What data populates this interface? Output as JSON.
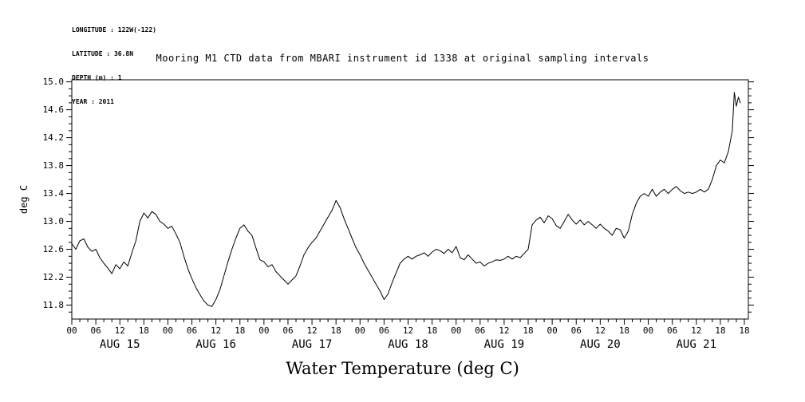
{
  "metadata": {
    "longitude": "LONGITUDE : 122W(-122)",
    "latitude": "LATITUDE : 36.8N",
    "depth": "DEPTH (m) : 1",
    "year": "YEAR : 2011"
  },
  "chart_data": {
    "type": "line",
    "title": "Mooring M1 CTD data from MBARI instrument id 1338 at original sampling intervals",
    "caption": "Water Temperature (deg C)",
    "ylabel": "deg C",
    "ylim": [
      11.6,
      15.03
    ],
    "y_tick_values": [
      11.8,
      12.2,
      12.6,
      13.0,
      13.4,
      13.8,
      14.2,
      14.6,
      15.0
    ],
    "y_minor_step": 0.1,
    "xlim_hours": [
      0,
      169
    ],
    "x_major_step_hours": 6,
    "x_minor_step_hours": 2,
    "hour_tick_labels": [
      "00",
      "06",
      "12",
      "18"
    ],
    "extra_end_hour_label": "18",
    "day_labels": [
      "AUG 15",
      "AUG 16",
      "AUG 17",
      "AUG 18",
      "AUG 19",
      "AUG 20",
      "AUG 21"
    ],
    "grid": false,
    "line_color": "#000000",
    "background": "#ffffff",
    "series": [
      {
        "name": "Water Temperature (deg C)",
        "x_unit": "hours since AUG 15 00:00 (2011)",
        "points": [
          [
            0,
            12.68
          ],
          [
            1,
            12.6
          ],
          [
            2,
            12.72
          ],
          [
            3,
            12.75
          ],
          [
            4,
            12.63
          ],
          [
            5,
            12.57
          ],
          [
            6,
            12.6
          ],
          [
            7,
            12.48
          ],
          [
            8,
            12.4
          ],
          [
            9,
            12.33
          ],
          [
            10,
            12.25
          ],
          [
            11,
            12.38
          ],
          [
            12,
            12.32
          ],
          [
            13,
            12.42
          ],
          [
            14,
            12.36
          ],
          [
            15,
            12.55
          ],
          [
            16,
            12.72
          ],
          [
            17,
            13.0
          ],
          [
            18,
            13.12
          ],
          [
            19,
            13.05
          ],
          [
            20,
            13.14
          ],
          [
            21,
            13.1
          ],
          [
            22,
            13.0
          ],
          [
            23,
            12.96
          ],
          [
            24,
            12.9
          ],
          [
            25,
            12.93
          ],
          [
            26,
            12.82
          ],
          [
            27,
            12.7
          ],
          [
            28,
            12.5
          ],
          [
            29,
            12.32
          ],
          [
            30,
            12.18
          ],
          [
            31,
            12.05
          ],
          [
            32,
            11.95
          ],
          [
            33,
            11.86
          ],
          [
            34,
            11.8
          ],
          [
            35,
            11.78
          ],
          [
            36,
            11.88
          ],
          [
            37,
            12.02
          ],
          [
            38,
            12.22
          ],
          [
            39,
            12.42
          ],
          [
            40,
            12.6
          ],
          [
            41,
            12.76
          ],
          [
            42,
            12.9
          ],
          [
            43,
            12.95
          ],
          [
            44,
            12.86
          ],
          [
            45,
            12.8
          ],
          [
            46,
            12.62
          ],
          [
            47,
            12.45
          ],
          [
            48,
            12.42
          ],
          [
            49,
            12.35
          ],
          [
            50,
            12.38
          ],
          [
            51,
            12.28
          ],
          [
            52,
            12.22
          ],
          [
            53,
            12.16
          ],
          [
            54,
            12.1
          ],
          [
            55,
            12.16
          ],
          [
            56,
            12.22
          ],
          [
            57,
            12.36
          ],
          [
            58,
            12.52
          ],
          [
            59,
            12.62
          ],
          [
            60,
            12.7
          ],
          [
            61,
            12.76
          ],
          [
            62,
            12.86
          ],
          [
            63,
            12.96
          ],
          [
            64,
            13.06
          ],
          [
            65,
            13.16
          ],
          [
            66,
            13.3
          ],
          [
            67,
            13.2
          ],
          [
            68,
            13.04
          ],
          [
            69,
            12.9
          ],
          [
            70,
            12.76
          ],
          [
            71,
            12.62
          ],
          [
            72,
            12.52
          ],
          [
            73,
            12.4
          ],
          [
            74,
            12.3
          ],
          [
            75,
            12.2
          ],
          [
            76,
            12.1
          ],
          [
            77,
            12.0
          ],
          [
            78,
            11.88
          ],
          [
            79,
            11.96
          ],
          [
            80,
            12.12
          ],
          [
            81,
            12.26
          ],
          [
            82,
            12.4
          ],
          [
            83,
            12.46
          ],
          [
            84,
            12.5
          ],
          [
            85,
            12.46
          ],
          [
            86,
            12.5
          ],
          [
            87,
            12.52
          ],
          [
            88,
            12.55
          ],
          [
            89,
            12.5
          ],
          [
            90,
            12.56
          ],
          [
            91,
            12.6
          ],
          [
            92,
            12.58
          ],
          [
            93,
            12.54
          ],
          [
            94,
            12.6
          ],
          [
            95,
            12.55
          ],
          [
            96,
            12.64
          ],
          [
            97,
            12.48
          ],
          [
            98,
            12.45
          ],
          [
            99,
            12.52
          ],
          [
            100,
            12.46
          ],
          [
            101,
            12.4
          ],
          [
            102,
            12.42
          ],
          [
            103,
            12.36
          ],
          [
            104,
            12.4
          ],
          [
            105,
            12.42
          ],
          [
            106,
            12.45
          ],
          [
            107,
            12.44
          ],
          [
            108,
            12.46
          ],
          [
            109,
            12.5
          ],
          [
            110,
            12.46
          ],
          [
            111,
            12.5
          ],
          [
            112,
            12.48
          ],
          [
            113,
            12.54
          ],
          [
            114,
            12.6
          ],
          [
            115,
            12.95
          ],
          [
            116,
            13.02
          ],
          [
            117,
            13.06
          ],
          [
            118,
            12.98
          ],
          [
            119,
            13.08
          ],
          [
            120,
            13.04
          ],
          [
            121,
            12.94
          ],
          [
            122,
            12.9
          ],
          [
            123,
            13.0
          ],
          [
            124,
            13.1
          ],
          [
            125,
            13.02
          ],
          [
            126,
            12.96
          ],
          [
            127,
            13.02
          ],
          [
            128,
            12.95
          ],
          [
            129,
            13.0
          ],
          [
            130,
            12.95
          ],
          [
            131,
            12.9
          ],
          [
            132,
            12.96
          ],
          [
            133,
            12.9
          ],
          [
            134,
            12.86
          ],
          [
            135,
            12.8
          ],
          [
            136,
            12.9
          ],
          [
            137,
            12.88
          ],
          [
            138,
            12.76
          ],
          [
            139,
            12.86
          ],
          [
            140,
            13.1
          ],
          [
            141,
            13.26
          ],
          [
            142,
            13.36
          ],
          [
            143,
            13.4
          ],
          [
            144,
            13.36
          ],
          [
            145,
            13.46
          ],
          [
            146,
            13.36
          ],
          [
            147,
            13.42
          ],
          [
            148,
            13.46
          ],
          [
            149,
            13.4
          ],
          [
            150,
            13.46
          ],
          [
            151,
            13.5
          ],
          [
            152,
            13.44
          ],
          [
            153,
            13.4
          ],
          [
            154,
            13.42
          ],
          [
            155,
            13.4
          ],
          [
            156,
            13.42
          ],
          [
            157,
            13.46
          ],
          [
            158,
            13.42
          ],
          [
            159,
            13.46
          ],
          [
            160,
            13.6
          ],
          [
            161,
            13.8
          ],
          [
            162,
            13.88
          ],
          [
            163,
            13.84
          ],
          [
            164,
            14.0
          ],
          [
            165,
            14.3
          ],
          [
            165.5,
            14.85
          ],
          [
            166,
            14.65
          ],
          [
            166.5,
            14.78
          ],
          [
            167,
            14.7
          ]
        ]
      }
    ]
  }
}
